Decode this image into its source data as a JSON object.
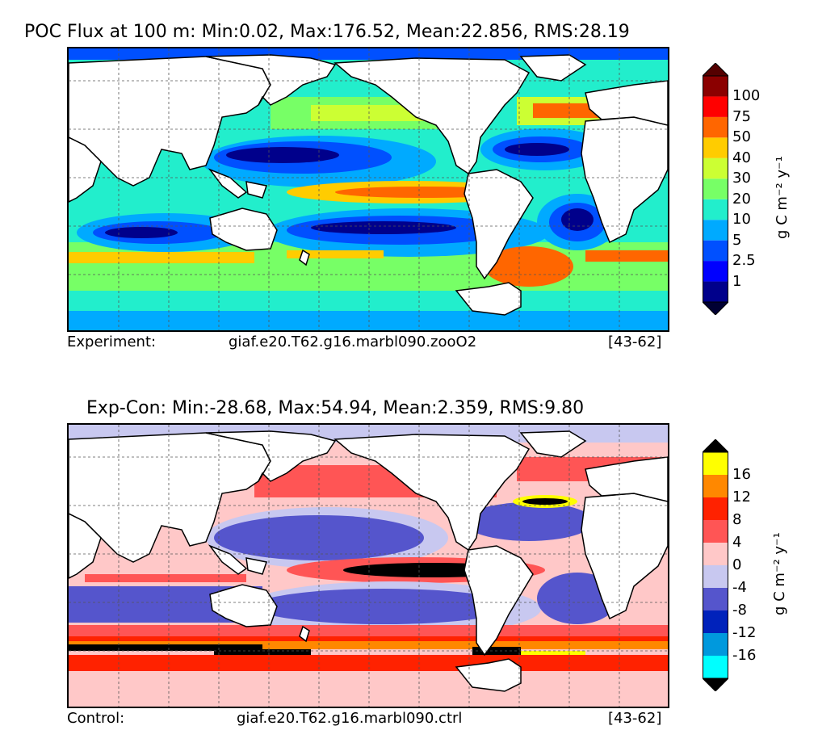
{
  "chart_data": [
    {
      "type": "heatmap",
      "title": "POC Flux at 100 m: Min:0.02, Max:176.52, Mean:22.856, RMS:28.19",
      "caption_left": "Experiment:",
      "caption_center": "giaf.e20.T62.g16.marbl090.zooO2",
      "caption_right": "[43-62]",
      "colorbar": {
        "label": "g C m⁻² y⁻¹",
        "levels": [
          0,
          1,
          2.5,
          5,
          10,
          20,
          30,
          40,
          50,
          75,
          100
        ],
        "tick_labels": [
          "1",
          "2.5",
          "5",
          "10",
          "20",
          "30",
          "40",
          "50",
          "75",
          "100"
        ],
        "colors": [
          "#00008b",
          "#0000ff",
          "#0050ff",
          "#00aaff",
          "#22eecc",
          "#77ff66",
          "#ccff33",
          "#ffcc00",
          "#ff6600",
          "#ff0000",
          "#8b0000"
        ],
        "extend": "both",
        "under_color": "#000033",
        "over_color": "#550000"
      },
      "mean": 22.856,
      "min": 0.02,
      "max": 176.52,
      "rms": 28.19
    },
    {
      "type": "heatmap",
      "title": "Exp-Con: Min:-28.68, Max:54.94, Mean:2.359, RMS:9.80",
      "caption_left": "Control:",
      "caption_center": "giaf.e20.T62.g16.marbl090.ctrl",
      "caption_right": "[43-62]",
      "colorbar": {
        "label": "g C m⁻² y⁻¹",
        "levels": [
          -20,
          -16,
          -12,
          -8,
          -4,
          0,
          4,
          8,
          12,
          16,
          20
        ],
        "tick_labels": [
          "-16",
          "-12",
          "-8",
          "-4",
          "0",
          "4",
          "8",
          "12",
          "16"
        ],
        "colors": [
          "#00ffff",
          "#0099dd",
          "#0022bb",
          "#5555cc",
          "#c8c8f0",
          "#ffc8c8",
          "#ff5555",
          "#ff2200",
          "#ff8800",
          "#ffff00"
        ],
        "extend": "both",
        "under_color": "#000000",
        "over_color": "#000000"
      },
      "mean": 2.359,
      "min": -28.68,
      "max": 54.94,
      "rms": 9.8
    }
  ]
}
